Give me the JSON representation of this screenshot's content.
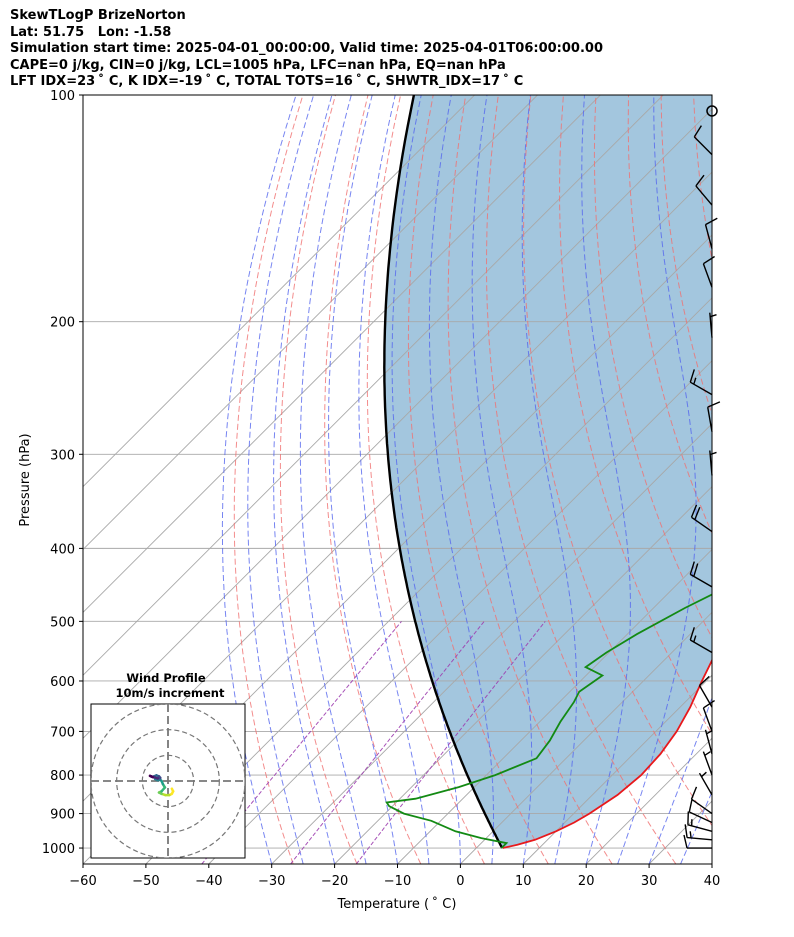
{
  "header": {
    "title": "SkewTLogP BrizeNorton",
    "location": "Lat: 51.75   Lon: -1.58",
    "times": "Simulation start time: 2025-04-01_00:00:00, Valid time: 2025-04-01T06:00:00.00",
    "params": "CAPE=0 j/kg, CIN=0 j/kg, LCL=1005 hPa, LFC=nan hPa, EQ=nan hPa",
    "indices": "LFT IDX=23 ˚ C, K IDX=-19 ˚ C, TOTAL TOTS=16 ˚ C, SHWTR_IDX=17 ˚ C"
  },
  "colors": {
    "temperature": "#e8191c",
    "dewpoint": "#138a13",
    "parcel": "#000000",
    "cape_fill": "#a3c6de",
    "dry_adiabat": "#f07070",
    "moist_adiabat": "#5566ee",
    "mixing_ratio": "#9d3fb0",
    "isotherm": "#a8a8a8",
    "barb": "#000000"
  },
  "chart_data": {
    "type": "skewt-logp",
    "xlabel": "Temperature ( ˚ C)",
    "ylabel": "Pressure (hPa)",
    "xlim": [
      -60,
      40
    ],
    "ylim": [
      1050,
      100
    ],
    "x_ticks": [
      "−60",
      "−50",
      "−40",
      "−30",
      "−20",
      "−10",
      "0",
      "10",
      "20",
      "30",
      "40"
    ],
    "x_tick_values": [
      -60,
      -50,
      -40,
      -30,
      -20,
      -10,
      0,
      10,
      20,
      30,
      40
    ],
    "y_ticks": [
      "1000",
      "900",
      "800",
      "700",
      "600",
      "500",
      "400",
      "300",
      "200",
      "100"
    ],
    "y_tick_values": [
      1000,
      900,
      800,
      700,
      600,
      500,
      400,
      300,
      200,
      100
    ],
    "grid": true,
    "temperature_profile": [
      [
        1000,
        4.2
      ],
      [
        990,
        6.0
      ],
      [
        975,
        8.0
      ],
      [
        950,
        10.0
      ],
      [
        925,
        11.5
      ],
      [
        900,
        12.5
      ],
      [
        850,
        14.0
      ],
      [
        800,
        14.6
      ],
      [
        750,
        14.3
      ],
      [
        700,
        13.3
      ],
      [
        650,
        11.6
      ],
      [
        600,
        9.3
      ],
      [
        550,
        7.0
      ],
      [
        500,
        4.9
      ],
      [
        450,
        2.0
      ],
      [
        400,
        -1.2
      ],
      [
        350,
        -4.6
      ],
      [
        300,
        -8.3
      ],
      [
        270,
        -10.3
      ],
      [
        250,
        -12.6
      ],
      [
        225,
        -14.6
      ],
      [
        200,
        -16.4
      ],
      [
        180,
        -17.0
      ],
      [
        160,
        -17.3
      ],
      [
        150,
        -17.0
      ],
      [
        140,
        -16.3
      ],
      [
        120,
        -14.3
      ],
      [
        100,
        -12.3
      ]
    ],
    "dewpoint_profile": [
      [
        1000,
        4.0
      ],
      [
        985,
        4.0
      ],
      [
        970,
        -0.8
      ],
      [
        950,
        -6.0
      ],
      [
        920,
        -11.5
      ],
      [
        900,
        -17.0
      ],
      [
        880,
        -20.5
      ],
      [
        870,
        -21.5
      ],
      [
        860,
        -17.5
      ],
      [
        830,
        -12.5
      ],
      [
        800,
        -8.6
      ],
      [
        760,
        -4.7
      ],
      [
        720,
        -5.4
      ],
      [
        680,
        -6.7
      ],
      [
        640,
        -7.7
      ],
      [
        620,
        -8.5
      ],
      [
        590,
        -7.4
      ],
      [
        575,
        -11.4
      ],
      [
        550,
        -10.4
      ],
      [
        520,
        -8.5
      ],
      [
        480,
        -5.0
      ],
      [
        455,
        -2.2
      ],
      [
        430,
        -3.2
      ],
      [
        400,
        -5.3
      ],
      [
        370,
        -8.0
      ],
      [
        330,
        -10.8
      ],
      [
        310,
        -12.6
      ],
      [
        290,
        -16.0
      ],
      [
        270,
        -18.4
      ],
      [
        250,
        -20.0
      ],
      [
        220,
        -21.4
      ],
      [
        200,
        -23.4
      ],
      [
        185,
        -26.0
      ],
      [
        170,
        -28.3
      ],
      [
        160,
        -30.4
      ],
      [
        150,
        -33.0
      ],
      [
        140,
        -35.3
      ],
      [
        130,
        -36.5
      ],
      [
        120,
        -37.6
      ],
      [
        110,
        -38.6
      ],
      [
        100,
        -39.6
      ]
    ],
    "parcel_base": [
      1000,
      4.1
    ],
    "wind_barbs": [
      {
        "p": 1000,
        "speed_kt": 10,
        "dir_deg": 270
      },
      {
        "p": 975,
        "speed_kt": 15,
        "dir_deg": 275
      },
      {
        "p": 950,
        "speed_kt": 15,
        "dir_deg": 285
      },
      {
        "p": 925,
        "speed_kt": 10,
        "dir_deg": 295
      },
      {
        "p": 900,
        "speed_kt": 10,
        "dir_deg": 305
      },
      {
        "p": 850,
        "speed_kt": 5,
        "dir_deg": 330
      },
      {
        "p": 800,
        "speed_kt": 5,
        "dir_deg": 340
      },
      {
        "p": 750,
        "speed_kt": 5,
        "dir_deg": 345
      },
      {
        "p": 700,
        "speed_kt": 10,
        "dir_deg": 340
      },
      {
        "p": 650,
        "speed_kt": 10,
        "dir_deg": 330
      },
      {
        "p": 550,
        "speed_kt": 15,
        "dir_deg": 300
      },
      {
        "p": 450,
        "speed_kt": 20,
        "dir_deg": 300
      },
      {
        "p": 380,
        "speed_kt": 20,
        "dir_deg": 305
      },
      {
        "p": 320,
        "speed_kt": 5,
        "dir_deg": 355
      },
      {
        "p": 280,
        "speed_kt": 10,
        "dir_deg": 350
      },
      {
        "p": 250,
        "speed_kt": 15,
        "dir_deg": 300
      },
      {
        "p": 210,
        "speed_kt": 5,
        "dir_deg": 355
      },
      {
        "p": 180,
        "speed_kt": 10,
        "dir_deg": 340
      },
      {
        "p": 160,
        "speed_kt": 10,
        "dir_deg": 345
      },
      {
        "p": 140,
        "speed_kt": 10,
        "dir_deg": 320
      },
      {
        "p": 120,
        "speed_kt": 10,
        "dir_deg": 315
      },
      {
        "p": 105,
        "speed_kt": 0,
        "dir_deg": 0
      }
    ],
    "hodograph": {
      "title": "Wind Profile",
      "subtitle": "10m/s increment",
      "rings": [
        10,
        20,
        30
      ],
      "limit": 30,
      "colormap": "viridis",
      "points": [
        [
          1.5,
          -3.0
        ],
        [
          2.0,
          -4.0
        ],
        [
          1.5,
          -5.0
        ],
        [
          0.5,
          -5.5
        ],
        [
          -1.0,
          -5.5
        ],
        [
          -2.5,
          -5.0
        ],
        [
          -3.5,
          -4.5
        ],
        [
          -2.5,
          -4.0
        ],
        [
          -1.2,
          -2.5
        ],
        [
          -2.0,
          -1.2
        ],
        [
          -2.5,
          0.0
        ],
        [
          -3.0,
          0.5
        ],
        [
          -4.0,
          0.3
        ],
        [
          -5.0,
          0.8
        ],
        [
          -5.5,
          1.8
        ],
        [
          -4.5,
          2.2
        ],
        [
          -3.5,
          1.8
        ],
        [
          -3.0,
          1.2
        ],
        [
          -4.0,
          1.0
        ],
        [
          -5.5,
          1.5
        ],
        [
          -6.5,
          1.8
        ],
        [
          -7.0,
          2.0
        ],
        [
          -6.0,
          1.5
        ]
      ]
    }
  }
}
